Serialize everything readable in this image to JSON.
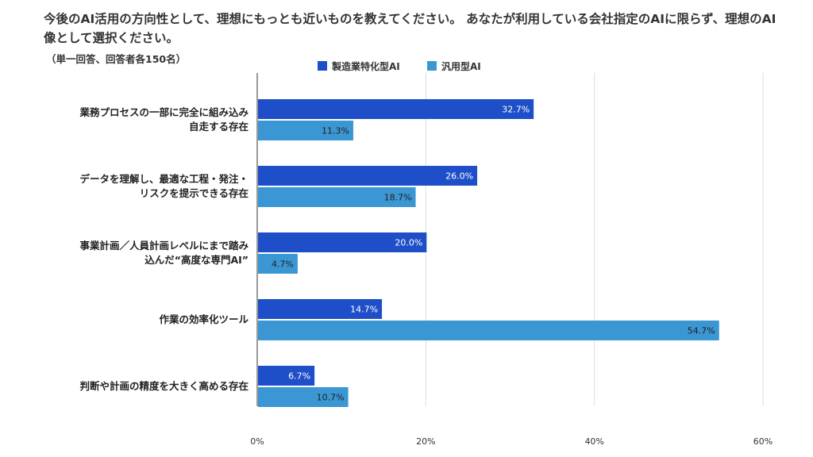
{
  "chart_data": {
    "type": "bar",
    "orientation": "horizontal",
    "title": "今後のAI活用の方向性として、理想にもっとも近いものを教えてください。 あなたが利用している会社指定のAIに限らず、理想のAI像として選択ください。",
    "subtitle": "（単一回答、回答者各150名）",
    "categories": [
      [
        "業務プロセスの一部に完全に組み込み",
        "自走する存在"
      ],
      [
        "データを理解し、最適な工程・発注・",
        "リスクを提示できる存在"
      ],
      [
        "事業計画／人員計画レベルにまで踏み",
        "込んだ“高度な専門AI”"
      ],
      [
        "作業の効率化ツール"
      ],
      [
        "判断や計画の精度を大きく高める存在"
      ]
    ],
    "series": [
      {
        "name": "製造業特化型AI",
        "color": "#1f4fc8",
        "values": [
          32.7,
          26.0,
          20.0,
          14.7,
          6.7
        ],
        "labels": [
          "32.7%",
          "26.0%",
          "20.0%",
          "14.7%",
          "6.7%"
        ]
      },
      {
        "name": "汎用型AI",
        "color": "#3b97d3",
        "values": [
          11.3,
          18.7,
          4.7,
          54.7,
          10.7
        ],
        "labels": [
          "11.3%",
          "18.7%",
          "4.7%",
          "54.7%",
          "10.7%"
        ]
      }
    ],
    "xlim": [
      0,
      60
    ],
    "xticks": [
      "0%",
      "20%",
      "40%",
      "60%"
    ],
    "grid": true,
    "legend": "top-center"
  }
}
